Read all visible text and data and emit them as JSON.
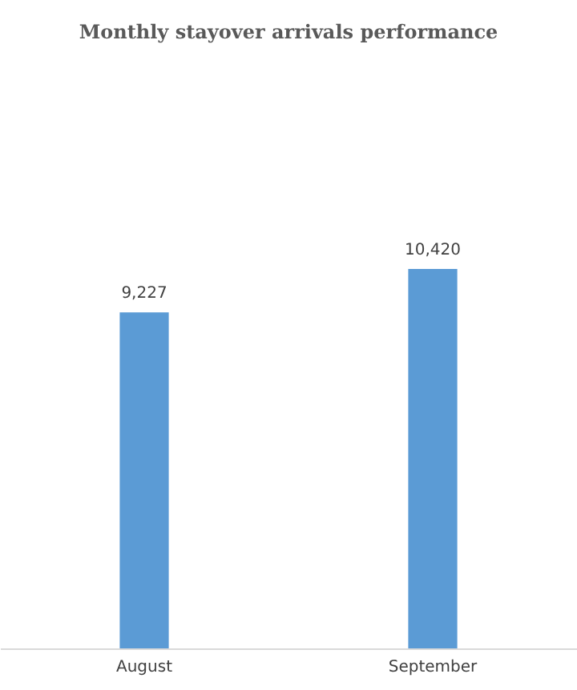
{
  "chart_data": {
    "type": "bar",
    "title": "Monthly stayover arrivals performance",
    "categories": [
      "August",
      "September"
    ],
    "values": [
      9227,
      10420
    ],
    "value_labels": [
      "9,227",
      "10,420"
    ],
    "color": "#5b9bd5",
    "grid": false
  }
}
